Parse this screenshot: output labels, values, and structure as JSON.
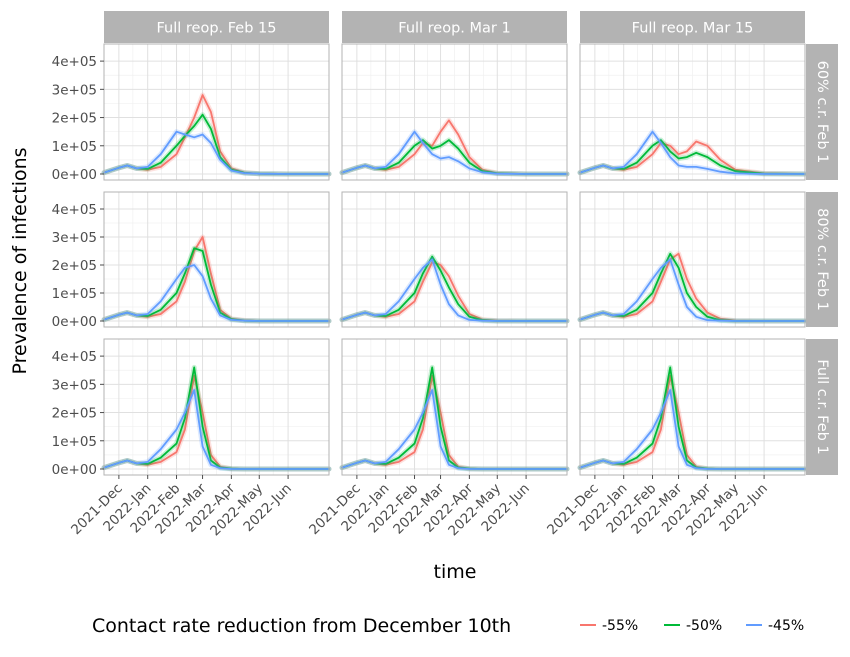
{
  "chart_data": {
    "type": "line",
    "xlabel": "time",
    "ylabel": "Prevalence of infections",
    "ylim": [
      0,
      450000
    ],
    "y_ticks": [
      0,
      100000,
      200000,
      300000,
      400000
    ],
    "y_tick_labels": [
      "0e+00",
      "1e+05",
      "2e+05",
      "3e+05",
      "4e+05"
    ],
    "x_range": [
      "2021-11-15",
      "2022-07-15"
    ],
    "x_ticks": [
      "2021-12-01",
      "2022-01-01",
      "2022-02-01",
      "2022-03-01",
      "2022-04-01",
      "2022-05-01",
      "2022-06-01"
    ],
    "x_tick_labels": [
      "2021-Dec",
      "2022-Jan",
      "2022-Feb",
      "2022-Mar",
      "2022-Apr",
      "2022-May",
      "2022-Jun"
    ],
    "facet_columns": [
      "Full reop. Feb 15",
      "Full reop. Mar 1",
      "Full reop. Mar 15"
    ],
    "facet_rows": [
      "60% c.r. Feb 1",
      "80% c.r. Feb 1",
      "Full c.r. Feb 1"
    ],
    "legend": {
      "title": "Contact rate reduction from December 10th",
      "position": "bottom",
      "items": [
        {
          "label": "-55%",
          "color": "#F8766D"
        },
        {
          "label": "-50%",
          "color": "#00BA38"
        },
        {
          "label": "-45%",
          "color": "#619CFF"
        }
      ]
    },
    "grid": true,
    "series_x": [
      "2021-11-15",
      "2021-12-01",
      "2021-12-10",
      "2021-12-20",
      "2022-01-01",
      "2022-01-15",
      "2022-02-01",
      "2022-02-10",
      "2022-02-20",
      "2022-03-01",
      "2022-03-10",
      "2022-03-20",
      "2022-04-01",
      "2022-04-15",
      "2022-05-01",
      "2022-06-01",
      "2022-07-15"
    ],
    "panels": [
      {
        "row": 0,
        "col": 0,
        "series": [
          {
            "name": "-55%",
            "values": [
              5000,
              22000,
              30000,
              20000,
              15000,
              25000,
              70000,
              130000,
              200000,
              280000,
              220000,
              80000,
              20000,
              5000,
              1000,
              0,
              0
            ]
          },
          {
            "name": "-50%",
            "values": [
              5000,
              22000,
              30000,
              20000,
              18000,
              40000,
              100000,
              135000,
              170000,
              210000,
              160000,
              60000,
              15000,
              4000,
              1000,
              0,
              0
            ]
          },
          {
            "name": "-45%",
            "values": [
              5000,
              22000,
              30000,
              20000,
              25000,
              70000,
              150000,
              140000,
              130000,
              140000,
              110000,
              50000,
              12000,
              3000,
              1000,
              0,
              0
            ]
          }
        ]
      },
      {
        "row": 0,
        "col": 1,
        "series": [
          {
            "name": "-55%",
            "values": [
              5000,
              22000,
              30000,
              20000,
              15000,
              25000,
              70000,
              110000,
              100000,
              150000,
              190000,
              140000,
              60000,
              15000,
              3000,
              0,
              0
            ]
          },
          {
            "name": "-50%",
            "values": [
              5000,
              22000,
              30000,
              20000,
              18000,
              40000,
              100000,
              120000,
              90000,
              100000,
              120000,
              90000,
              40000,
              10000,
              2000,
              0,
              0
            ]
          },
          {
            "name": "-45%",
            "values": [
              5000,
              22000,
              30000,
              20000,
              25000,
              70000,
              150000,
              110000,
              70000,
              55000,
              60000,
              45000,
              20000,
              6000,
              1000,
              0,
              0
            ]
          }
        ]
      },
      {
        "row": 0,
        "col": 2,
        "series": [
          {
            "name": "-55%",
            "values": [
              5000,
              22000,
              30000,
              20000,
              15000,
              25000,
              70000,
              110000,
              100000,
              70000,
              80000,
              115000,
              100000,
              50000,
              15000,
              2000,
              0
            ]
          },
          {
            "name": "-50%",
            "values": [
              5000,
              22000,
              30000,
              20000,
              18000,
              40000,
              100000,
              120000,
              80000,
              55000,
              60000,
              75000,
              60000,
              30000,
              10000,
              1000,
              0
            ]
          },
          {
            "name": "-45%",
            "values": [
              5000,
              22000,
              30000,
              20000,
              25000,
              70000,
              150000,
              110000,
              60000,
              30000,
              25000,
              25000,
              18000,
              8000,
              2000,
              0,
              0
            ]
          }
        ]
      },
      {
        "row": 1,
        "col": 0,
        "series": [
          {
            "name": "-55%",
            "values": [
              5000,
              22000,
              30000,
              20000,
              15000,
              25000,
              70000,
              140000,
              250000,
              300000,
              170000,
              40000,
              8000,
              2000,
              0,
              0,
              0
            ]
          },
          {
            "name": "-50%",
            "values": [
              5000,
              22000,
              30000,
              20000,
              18000,
              40000,
              100000,
              170000,
              260000,
              250000,
              130000,
              30000,
              6000,
              1000,
              0,
              0,
              0
            ]
          },
          {
            "name": "-45%",
            "values": [
              5000,
              22000,
              30000,
              20000,
              25000,
              70000,
              150000,
              190000,
              200000,
              160000,
              80000,
              20000,
              4000,
              1000,
              0,
              0,
              0
            ]
          }
        ]
      },
      {
        "row": 1,
        "col": 1,
        "series": [
          {
            "name": "-55%",
            "values": [
              5000,
              22000,
              30000,
              20000,
              15000,
              25000,
              70000,
              140000,
              210000,
              200000,
              160000,
              90000,
              25000,
              5000,
              1000,
              0,
              0
            ]
          },
          {
            "name": "-50%",
            "values": [
              5000,
              22000,
              30000,
              20000,
              18000,
              40000,
              100000,
              170000,
              230000,
              180000,
              120000,
              60000,
              15000,
              3000,
              0,
              0,
              0
            ]
          },
          {
            "name": "-45%",
            "values": [
              5000,
              22000,
              30000,
              20000,
              25000,
              70000,
              150000,
              190000,
              220000,
              130000,
              60000,
              20000,
              4000,
              1000,
              0,
              0,
              0
            ]
          }
        ]
      },
      {
        "row": 1,
        "col": 2,
        "series": [
          {
            "name": "-55%",
            "values": [
              5000,
              22000,
              30000,
              20000,
              15000,
              25000,
              70000,
              140000,
              220000,
              240000,
              150000,
              80000,
              30000,
              8000,
              1000,
              0,
              0
            ]
          },
          {
            "name": "-50%",
            "values": [
              5000,
              22000,
              30000,
              20000,
              18000,
              40000,
              100000,
              170000,
              240000,
              190000,
              100000,
              50000,
              15000,
              3000,
              0,
              0,
              0
            ]
          },
          {
            "name": "-45%",
            "values": [
              5000,
              22000,
              30000,
              20000,
              25000,
              70000,
              150000,
              190000,
              220000,
              130000,
              50000,
              15000,
              3000,
              1000,
              0,
              0,
              0
            ]
          }
        ]
      },
      {
        "row": 2,
        "col": 0,
        "series": [
          {
            "name": "-55%",
            "values": [
              5000,
              22000,
              30000,
              20000,
              15000,
              25000,
              60000,
              140000,
              330000,
              200000,
              50000,
              8000,
              1000,
              0,
              0,
              0,
              0
            ]
          },
          {
            "name": "-50%",
            "values": [
              5000,
              22000,
              30000,
              20000,
              18000,
              40000,
              90000,
              180000,
              360000,
              150000,
              30000,
              5000,
              1000,
              0,
              0,
              0,
              0
            ]
          },
          {
            "name": "-45%",
            "values": [
              5000,
              22000,
              30000,
              20000,
              25000,
              70000,
              140000,
              200000,
              280000,
              80000,
              15000,
              3000,
              0,
              0,
              0,
              0,
              0
            ]
          }
        ]
      },
      {
        "row": 2,
        "col": 1,
        "series": [
          {
            "name": "-55%",
            "values": [
              5000,
              22000,
              30000,
              20000,
              15000,
              25000,
              60000,
              140000,
              330000,
              200000,
              50000,
              8000,
              1000,
              0,
              0,
              0,
              0
            ]
          },
          {
            "name": "-50%",
            "values": [
              5000,
              22000,
              30000,
              20000,
              18000,
              40000,
              90000,
              180000,
              360000,
              150000,
              30000,
              5000,
              1000,
              0,
              0,
              0,
              0
            ]
          },
          {
            "name": "-45%",
            "values": [
              5000,
              22000,
              30000,
              20000,
              25000,
              70000,
              140000,
              200000,
              280000,
              80000,
              15000,
              3000,
              0,
              0,
              0,
              0,
              0
            ]
          }
        ]
      },
      {
        "row": 2,
        "col": 2,
        "series": [
          {
            "name": "-55%",
            "values": [
              5000,
              22000,
              30000,
              20000,
              15000,
              25000,
              60000,
              140000,
              330000,
              200000,
              50000,
              8000,
              1000,
              0,
              0,
              0,
              0
            ]
          },
          {
            "name": "-50%",
            "values": [
              5000,
              22000,
              30000,
              20000,
              18000,
              40000,
              90000,
              180000,
              360000,
              150000,
              30000,
              5000,
              1000,
              0,
              0,
              0,
              0
            ]
          },
          {
            "name": "-45%",
            "values": [
              5000,
              22000,
              30000,
              20000,
              25000,
              70000,
              140000,
              200000,
              280000,
              80000,
              15000,
              3000,
              0,
              0,
              0,
              0,
              0
            ]
          }
        ]
      }
    ]
  }
}
